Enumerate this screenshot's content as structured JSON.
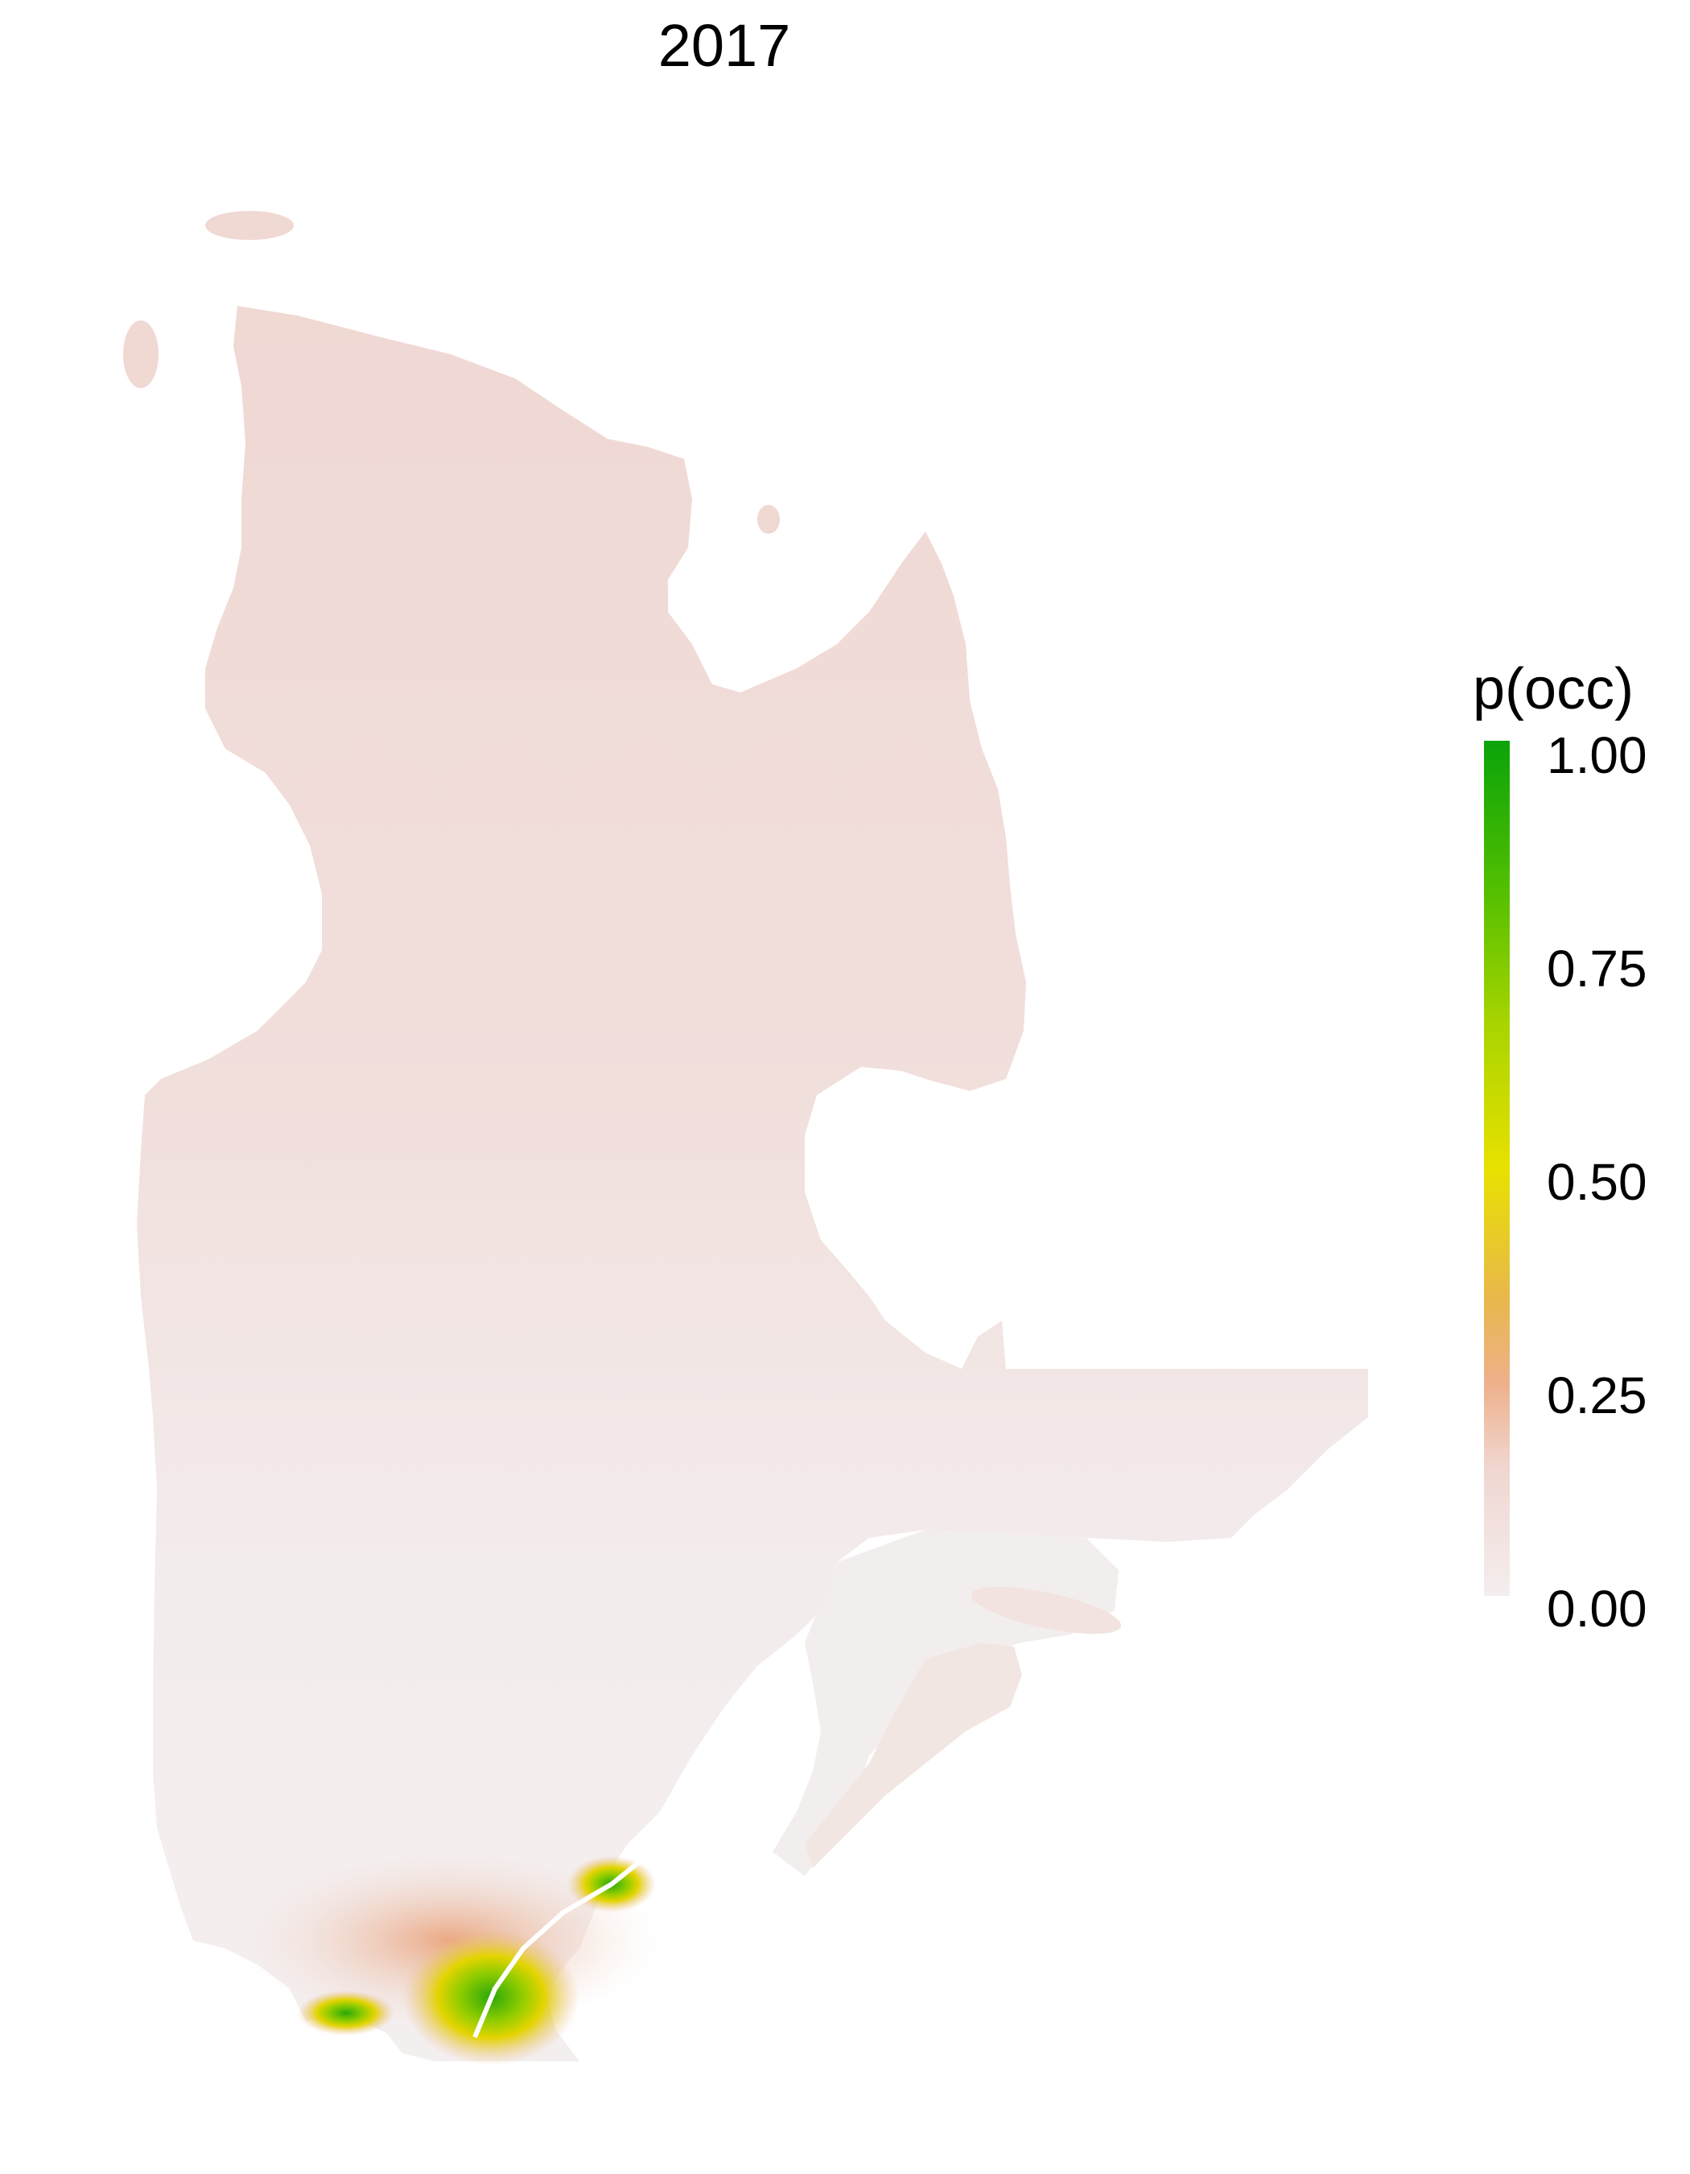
{
  "title": "2017",
  "legend": {
    "title": "p(occ)",
    "ticks": [
      "1.00",
      "0.75",
      "0.50",
      "0.25",
      "0.00"
    ]
  },
  "colors": {
    "high": "#0aa30a",
    "mid": "#e8e100",
    "low_mid": "#eeb08a",
    "low": "#f0d6d0",
    "zero": "#f4eeee"
  }
}
